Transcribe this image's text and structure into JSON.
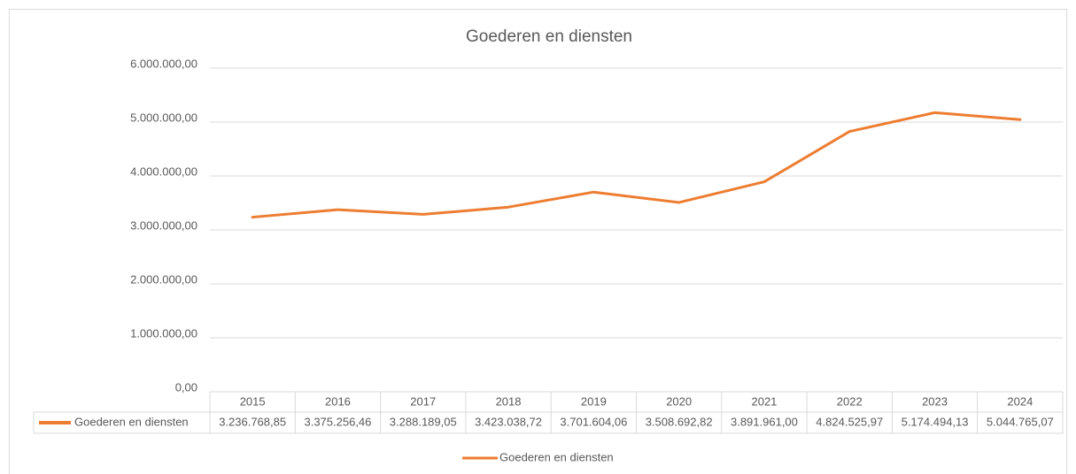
{
  "chart_data": {
    "type": "line",
    "title": "Goederen en diensten",
    "categories": [
      "2015",
      "2016",
      "2017",
      "2018",
      "2019",
      "2020",
      "2021",
      "2022",
      "2023",
      "2024"
    ],
    "series": [
      {
        "name": "Goederen en diensten",
        "color": "#ED7D31",
        "values": [
          3236768.85,
          3375256.46,
          3288189.05,
          3423038.72,
          3701604.06,
          3508692.82,
          3891961.0,
          4824525.97,
          5174494.13,
          5044765.07
        ],
        "value_labels": [
          "3.236.768,85",
          "3.375.256,46",
          "3.288.189,05",
          "3.423.038,72",
          "3.701.604,06",
          "3.508.692,82",
          "3.891.961,00",
          "4.824.525,97",
          "5.174.494,13",
          "5.044.765,07"
        ]
      }
    ],
    "ylim": [
      0,
      6000000
    ],
    "yticks": [
      {
        "value": 0,
        "label": "0,00"
      },
      {
        "value": 1000000,
        "label": "1.000.000,00"
      },
      {
        "value": 2000000,
        "label": "2.000.000,00"
      },
      {
        "value": 3000000,
        "label": "3.000.000,00"
      },
      {
        "value": 4000000,
        "label": "4.000.000,00"
      },
      {
        "value": 5000000,
        "label": "5.000.000,00"
      },
      {
        "value": 6000000,
        "label": "6.000.000,00"
      }
    ],
    "grid": true,
    "legend": "bottom"
  }
}
